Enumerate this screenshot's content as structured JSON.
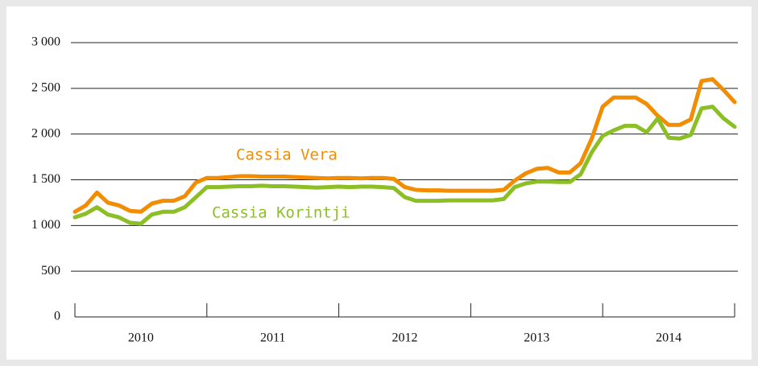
{
  "chart_data": {
    "type": "line",
    "categories": [
      "2010",
      "2011",
      "2012",
      "2013",
      "2014"
    ],
    "x": [
      2010,
      2010.083,
      2010.167,
      2010.25,
      2010.333,
      2010.417,
      2010.5,
      2010.583,
      2010.667,
      2010.75,
      2010.833,
      2010.917,
      2011,
      2011.083,
      2011.167,
      2011.25,
      2011.333,
      2011.417,
      2011.5,
      2011.583,
      2011.667,
      2011.75,
      2011.833,
      2011.917,
      2012,
      2012.083,
      2012.167,
      2012.25,
      2012.333,
      2012.417,
      2012.5,
      2012.583,
      2012.667,
      2012.75,
      2012.833,
      2012.917,
      2013,
      2013.083,
      2013.167,
      2013.25,
      2013.333,
      2013.417,
      2013.5,
      2013.583,
      2013.667,
      2013.75,
      2013.833,
      2013.917,
      2014,
      2014.083,
      2014.167,
      2014.25,
      2014.333,
      2014.417,
      2014.5,
      2014.583,
      2014.667,
      2014.75,
      2014.833,
      2014.917,
      2015
    ],
    "series": [
      {
        "name": "Cassia Vera",
        "color": "#f28c00",
        "values": [
          1150,
          1220,
          1360,
          1250,
          1220,
          1160,
          1150,
          1240,
          1270,
          1270,
          1320,
          1470,
          1520,
          1520,
          1530,
          1540,
          1540,
          1535,
          1535,
          1535,
          1530,
          1525,
          1520,
          1515,
          1520,
          1520,
          1515,
          1520,
          1520,
          1510,
          1420,
          1390,
          1385,
          1385,
          1380,
          1380,
          1380,
          1380,
          1380,
          1390,
          1490,
          1570,
          1620,
          1630,
          1580,
          1580,
          1680,
          1950,
          2300,
          2400,
          2400,
          2400,
          2330,
          2200,
          2100,
          2100,
          2160,
          2580,
          2600,
          2480,
          2350
        ]
      },
      {
        "name": "Cassia Korintji",
        "color": "#8cbf26",
        "values": [
          1090,
          1130,
          1200,
          1120,
          1090,
          1030,
          1020,
          1120,
          1150,
          1150,
          1200,
          1310,
          1420,
          1420,
          1425,
          1430,
          1430,
          1435,
          1430,
          1430,
          1425,
          1420,
          1415,
          1420,
          1425,
          1420,
          1425,
          1425,
          1420,
          1410,
          1310,
          1270,
          1270,
          1270,
          1275,
          1275,
          1275,
          1275,
          1275,
          1290,
          1420,
          1460,
          1480,
          1480,
          1475,
          1475,
          1560,
          1800,
          1980,
          2040,
          2090,
          2090,
          2020,
          2170,
          1960,
          1950,
          1990,
          2280,
          2300,
          2170,
          2080
        ]
      }
    ],
    "xlim": [
      2010,
      2015
    ],
    "xticks": [
      2010,
      2011,
      2012,
      2013,
      2014,
      2015
    ],
    "ylim": [
      0,
      3000
    ],
    "yticks": [
      {
        "value": 0,
        "label": "0"
      },
      {
        "value": 500,
        "label": "500"
      },
      {
        "value": 1000,
        "label": "1 000"
      },
      {
        "value": 1500,
        "label": "1 500"
      },
      {
        "value": 2000,
        "label": "2 000"
      },
      {
        "value": 2500,
        "label": "2 500"
      },
      {
        "value": 3000,
        "label": "3 000"
      }
    ],
    "grid": true
  }
}
